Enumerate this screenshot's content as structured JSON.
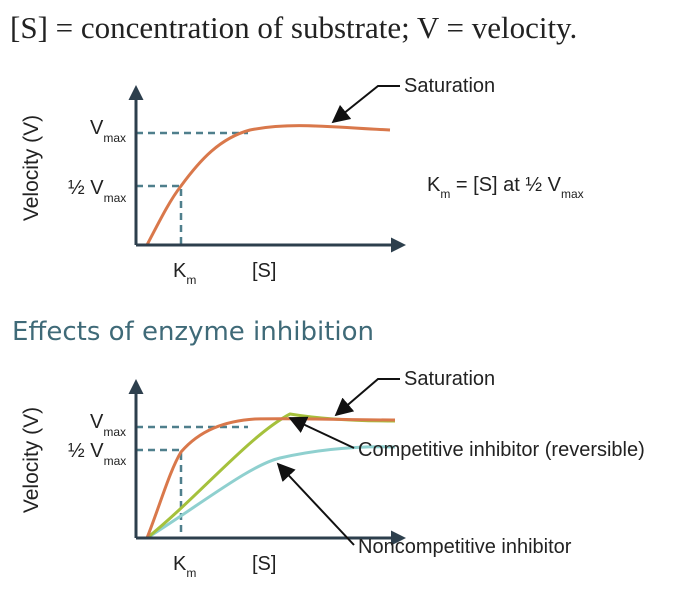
{
  "caption": "[S] = concentration of substrate; V = velocity.",
  "top_diagram": {
    "y_axis_label": "Velocity (V)",
    "vmax": {
      "main": "V",
      "sub": "max"
    },
    "half_vmax": {
      "main": "½ V",
      "sub": "max"
    },
    "km": {
      "main": "K",
      "sub": "m"
    },
    "x_axis_label": "[S]",
    "saturation": "Saturation",
    "km_definition": {
      "k": "K",
      "k_sub": "m",
      "middle": " = [S] at ½ V",
      "v_sub": "max"
    }
  },
  "heading": "Effects of enzyme inhibition",
  "bottom_diagram": {
    "y_axis_label": "Velocity (V)",
    "vmax": {
      "main": "V",
      "sub": "max"
    },
    "half_vmax": {
      "main": "½ V",
      "sub": "max"
    },
    "km": {
      "main": "K",
      "sub": "m"
    },
    "x_axis_label": "[S]",
    "saturation": "Saturation",
    "competitive": "Competitive inhibitor (reversible)",
    "noncompetitive": "Noncompetitive inhibitor"
  }
}
